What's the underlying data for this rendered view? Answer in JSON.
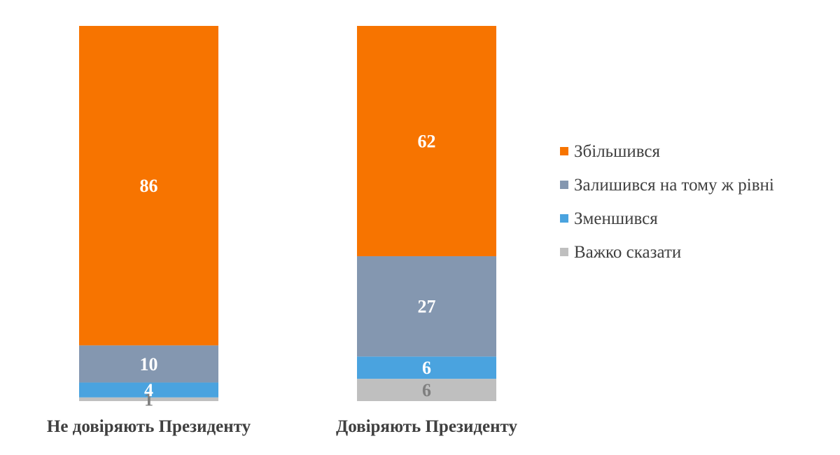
{
  "chart_data": {
    "type": "bar",
    "stacked": true,
    "categories": [
      "Не довіряють Президенту",
      "Довіряють Президенту"
    ],
    "series": [
      {
        "name": "Важко сказати",
        "color": "#bfbfbf",
        "label_color": "#7f7f7f",
        "values": [
          1,
          6
        ]
      },
      {
        "name": "Зменшився",
        "color": "#4aa3df",
        "label_color": "#ffffff",
        "values": [
          4,
          6
        ]
      },
      {
        "name": "Залишився на тому ж рівні",
        "color": "#8497b0",
        "label_color": "#ffffff",
        "values": [
          10,
          27
        ]
      },
      {
        "name": "Збільшився",
        "color": "#f77400",
        "label_color": "#ffffff",
        "values": [
          86,
          62
        ]
      }
    ],
    "legend_order": [
      "Збільшився",
      "Залишився на тому ж рівні",
      "Зменшився",
      "Важко сказати"
    ],
    "legend_position": "right",
    "grid": false,
    "ylim": [
      0,
      101
    ]
  }
}
